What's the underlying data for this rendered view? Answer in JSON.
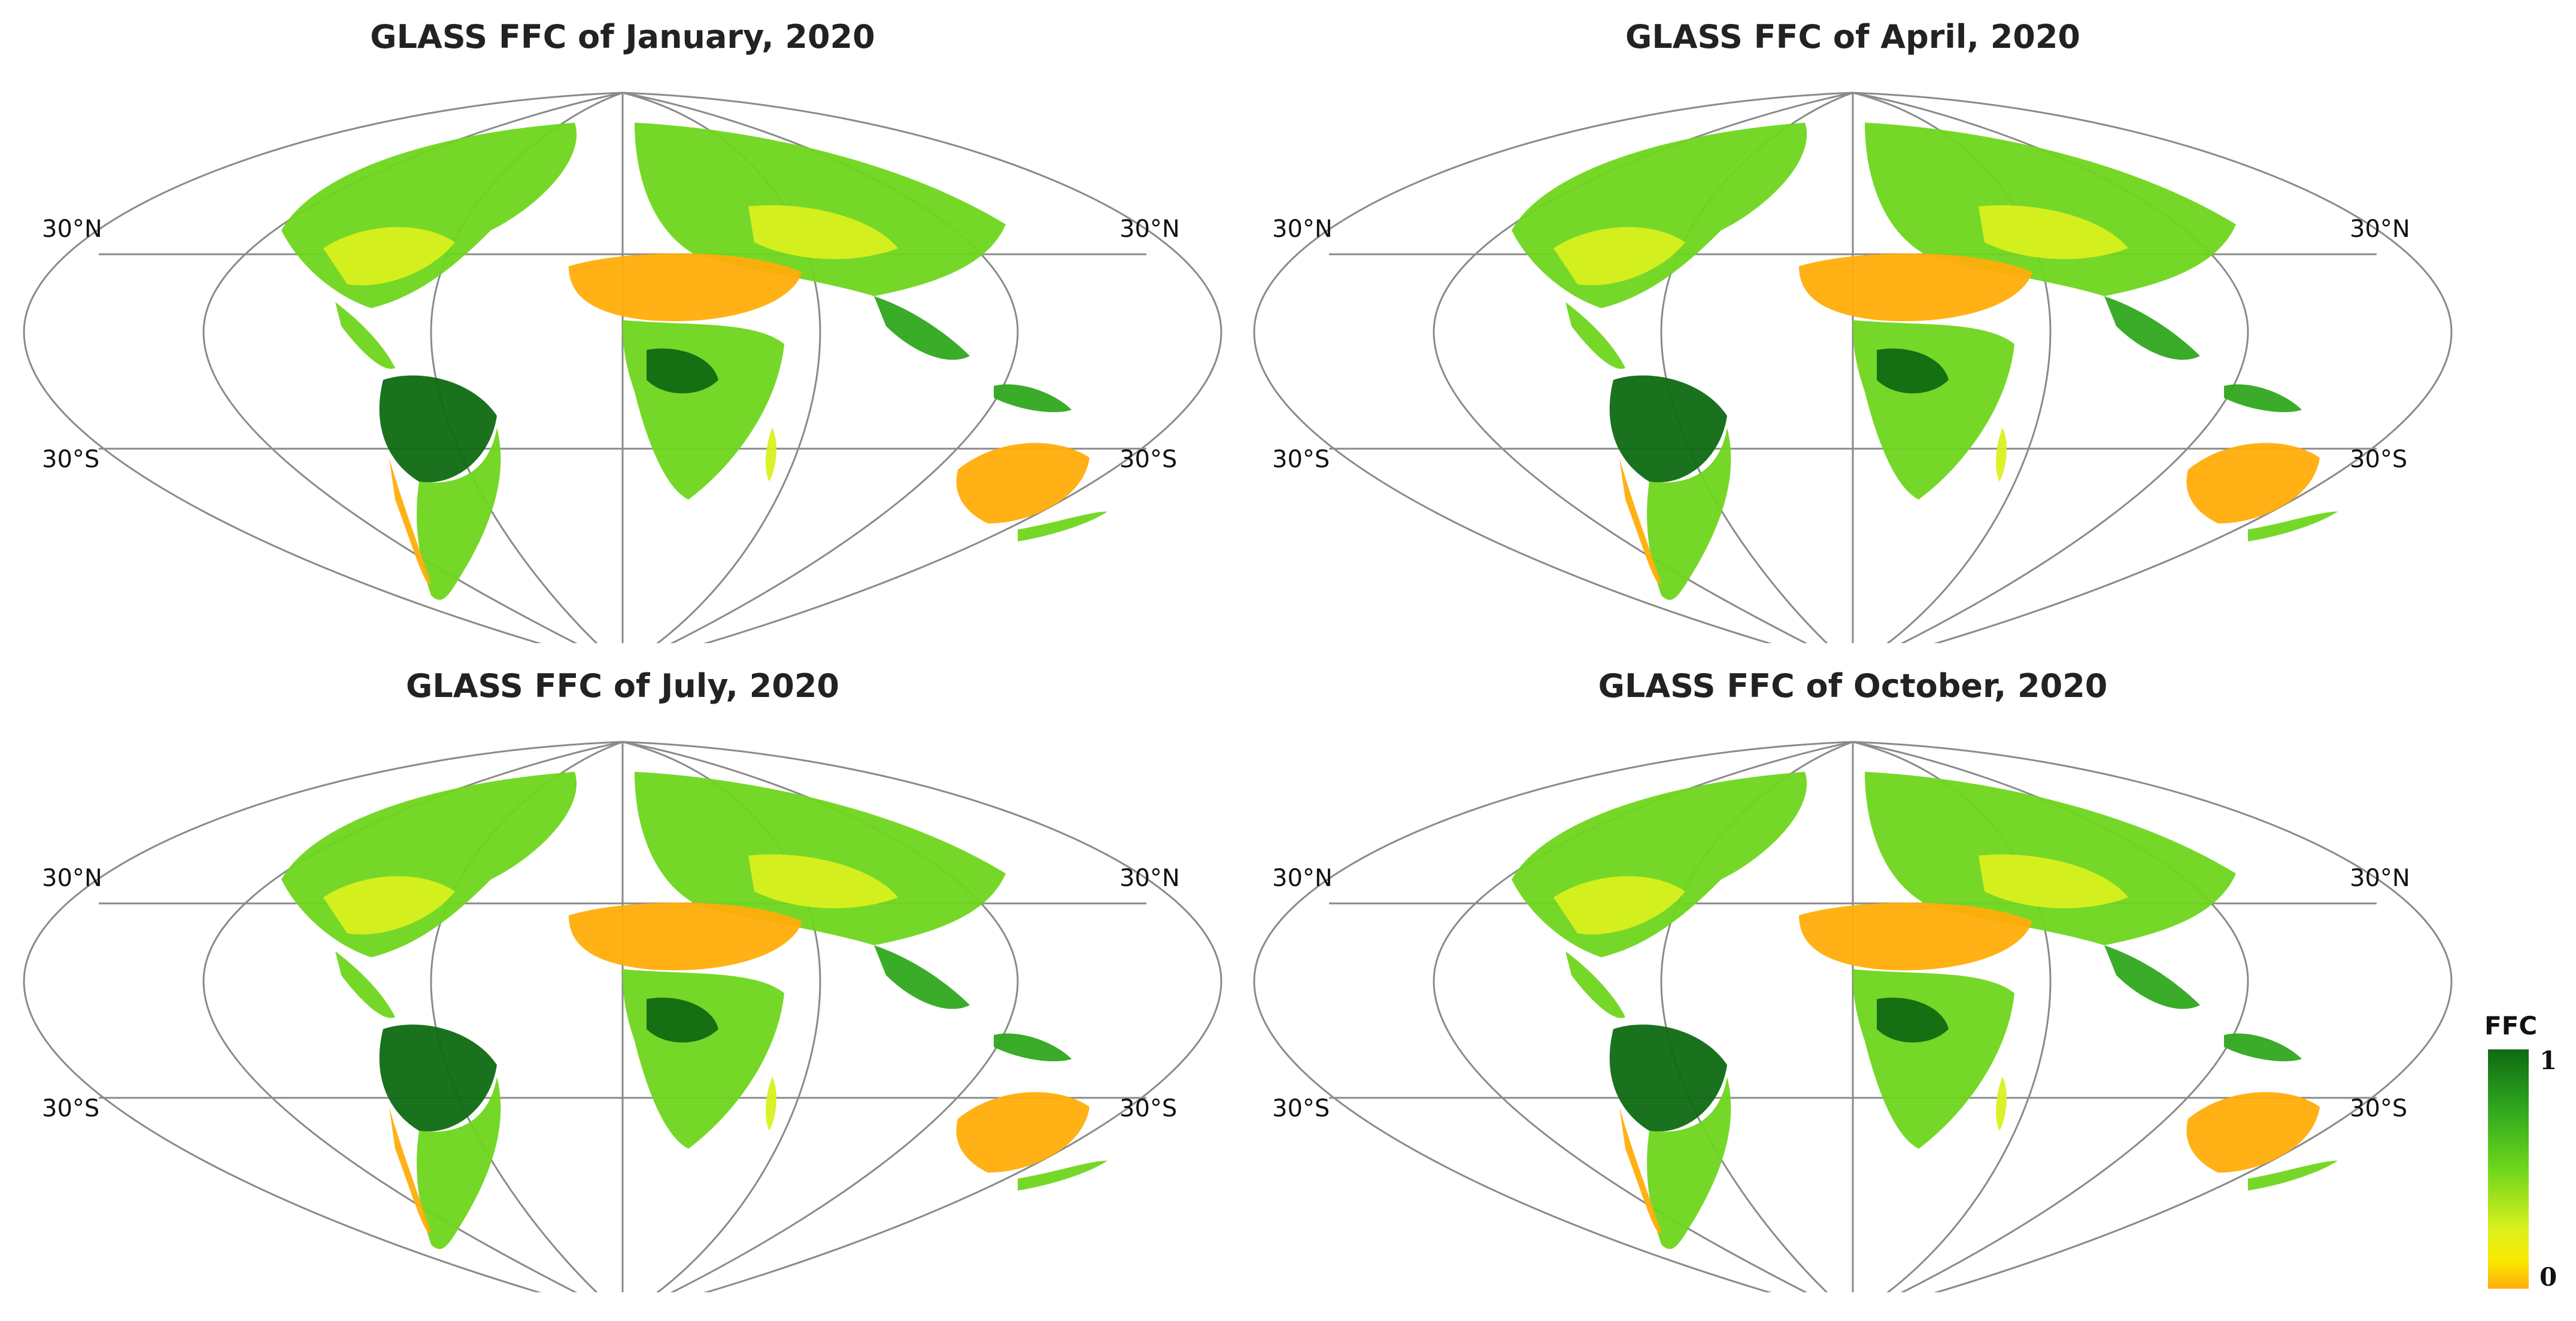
{
  "maps": [
    {
      "title": "GLASS FFC of January, 2020",
      "lat_n_label": "30°N",
      "lat_s_label": "30°S"
    },
    {
      "title": "GLASS FFC of April, 2020",
      "lat_n_label": "30°N",
      "lat_s_label": "30°S"
    },
    {
      "title": "GLASS FFC of July, 2020",
      "lat_n_label": "30°N",
      "lat_s_label": "30°S"
    },
    {
      "title": "GLASS FFC of October, 2020",
      "lat_n_label": "30°N",
      "lat_s_label": "30°S"
    }
  ],
  "legend": {
    "title": "FFC",
    "max_label": "1",
    "min_label": "0",
    "colors": [
      "#0f6a12",
      "#2fa81e",
      "#6ed61c",
      "#d9f01e",
      "#ffad0a"
    ]
  }
}
